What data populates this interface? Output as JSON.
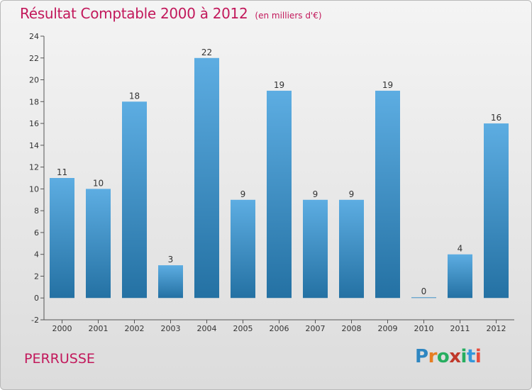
{
  "title": "Résultat Comptable 2000 à 2012",
  "subtitle": "(en milliers d'€)",
  "commune": "PERRUSSE",
  "logo": "Proxiti",
  "colors": {
    "title": "#c2185b",
    "bar_light": "#5dade2",
    "bar_dark": "#2471a3",
    "logo_letters": [
      "#2e86c1",
      "#e67e22",
      "#27ae60",
      "#c0392b",
      "#27ae60",
      "#3498db",
      "#e74c3c"
    ]
  },
  "chart_data": {
    "type": "bar",
    "title": "Résultat Comptable 2000 à 2012",
    "subtitle": "(en milliers d'€)",
    "categories": [
      "2000",
      "2001",
      "2002",
      "2003",
      "2004",
      "2005",
      "2006",
      "2007",
      "2008",
      "2009",
      "2010",
      "2011",
      "2012"
    ],
    "values": [
      11,
      10,
      18,
      3,
      22,
      9,
      19,
      9,
      9,
      19,
      0,
      4,
      16
    ],
    "value_labels": [
      "11",
      "10",
      "18",
      "3",
      "22",
      "9",
      "19",
      "9",
      "9",
      "19",
      "0",
      "4",
      "16"
    ],
    "yticks": [
      -2,
      0,
      2,
      4,
      6,
      8,
      10,
      12,
      14,
      16,
      18,
      20,
      22,
      24
    ],
    "ytick_labels": [
      "-2",
      "0",
      "2",
      "4",
      "6",
      "8",
      "10",
      "12",
      "14",
      "16",
      "18",
      "20",
      "22",
      "24"
    ],
    "ylim": [
      -2,
      24
    ],
    "xlabel": "",
    "ylabel": "",
    "grid": false,
    "legend": "none"
  }
}
